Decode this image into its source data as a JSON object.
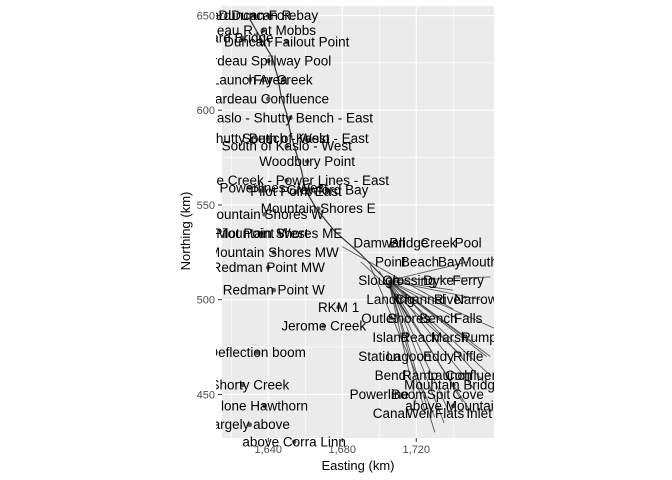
{
  "chart_data": {
    "type": "scatter",
    "title": "",
    "xlabel": "Easting (km)",
    "ylabel": "Northing (km)",
    "xlim": [
      1615,
      1762
    ],
    "ylim": [
      427,
      655
    ],
    "x_ticks": [
      1640,
      1680,
      1720
    ],
    "x_tick_labels": [
      "1,640",
      "1,680",
      "1,720"
    ],
    "y_ticks": [
      450,
      500,
      550,
      600,
      650
    ],
    "y_tick_labels": [
      "450",
      "500",
      "550",
      "600",
      "650"
    ],
    "grid": true,
    "panel_background": "#ebebeb",
    "grid_color": "#ffffff",
    "point_color": "#595959",
    "line_color": "#333333",
    "labeled_sites": [
      {
        "label": "Duncan Forebay",
        "x": 1640,
        "y": 650
      },
      {
        "label": "ardDuncan R.",
        "x": 1632,
        "y": 650
      },
      {
        "label": "deau R. at Mobbs",
        "x": 1637,
        "y": 642
      },
      {
        "label": "ard Bridge",
        "x": 1626,
        "y": 638
      },
      {
        "label": "Duncan Failout Point",
        "x": 1650,
        "y": 636
      },
      {
        "label": "ardeau Spillway Pool",
        "x": 1640,
        "y": 626
      },
      {
        "label": "Launch Area",
        "x": 1630,
        "y": 616
      },
      {
        "label": "Fry Creek",
        "x": 1648,
        "y": 616
      },
      {
        "label": "Lardeau Confluence",
        "x": 1640,
        "y": 606
      },
      {
        "label": "Kaslo - Shutty Bench - East",
        "x": 1652,
        "y": 596
      },
      {
        "label": "Shutty Bench - West",
        "x": 1640,
        "y": 585
      },
      {
        "label": "South of Kaslo - East",
        "x": 1660,
        "y": 585
      },
      {
        "label": "South of Kaslo - West",
        "x": 1650,
        "y": 581
      },
      {
        "label": "Woodbury Point",
        "x": 1661,
        "y": 573
      },
      {
        "label": "Coffee Creek - Power Lines - East",
        "x": 1650,
        "y": 563
      },
      {
        "label": "Creek - Powerlines - West",
        "x": 1630,
        "y": 559
      },
      {
        "label": "Crawford Bay",
        "x": 1672,
        "y": 558
      },
      {
        "label": "Pilot Point East",
        "x": 1655,
        "y": 557
      },
      {
        "label": "Mountain Shores E",
        "x": 1667,
        "y": 548
      },
      {
        "label": "Mountain Shores W",
        "x": 1638,
        "y": 545
      },
      {
        "label": "Pilot Point West",
        "x": 1636,
        "y": 535
      },
      {
        "label": "Mountain Shores ME",
        "x": 1646,
        "y": 535
      },
      {
        "label": "Mountain Shores MW",
        "x": 1643,
        "y": 525
      },
      {
        "label": "Redman Point MW",
        "x": 1640,
        "y": 517
      },
      {
        "label": "Redman Point W",
        "x": 1643,
        "y": 505
      },
      {
        "label": "RKM 1",
        "x": 1678,
        "y": 496
      },
      {
        "label": "Jerome Creek",
        "x": 1670,
        "y": 486
      },
      {
        "label": "Deflection boom",
        "x": 1634,
        "y": 472
      },
      {
        "label": "In Shorty Creek",
        "x": 1626,
        "y": 455
      },
      {
        "label": "lone Hawthorn",
        "x": 1638,
        "y": 444
      },
      {
        "label": "largely above",
        "x": 1630,
        "y": 434
      },
      {
        "label": "above Corra Linn",
        "x": 1654,
        "y": 425
      },
      {
        "label": "Mountain Bridge",
        "x": 1740,
        "y": 455
      },
      {
        "label": "above Mountain",
        "x": 1740,
        "y": 444
      }
    ],
    "clutter_labels": [
      "Damwall",
      "Bridge",
      "Creek",
      "Pool",
      "Point",
      "Beach",
      "Bay",
      "Mouth",
      "Slough",
      "Crossing",
      "Dyke",
      "Ferry",
      "Landing",
      "Channel",
      "River",
      "Narrows",
      "Outlet",
      "Shores",
      "Bench",
      "Falls",
      "Island",
      "Reach",
      "Marsh",
      "Pump",
      "Station",
      "Lagoon",
      "Eddy",
      "Riffle",
      "Bend",
      "Ramp",
      "Launch",
      "Confluence",
      "Powerline",
      "Boom",
      "Spit",
      "Cove",
      "Canal",
      "Weir",
      "Flats",
      "Inlet"
    ]
  }
}
